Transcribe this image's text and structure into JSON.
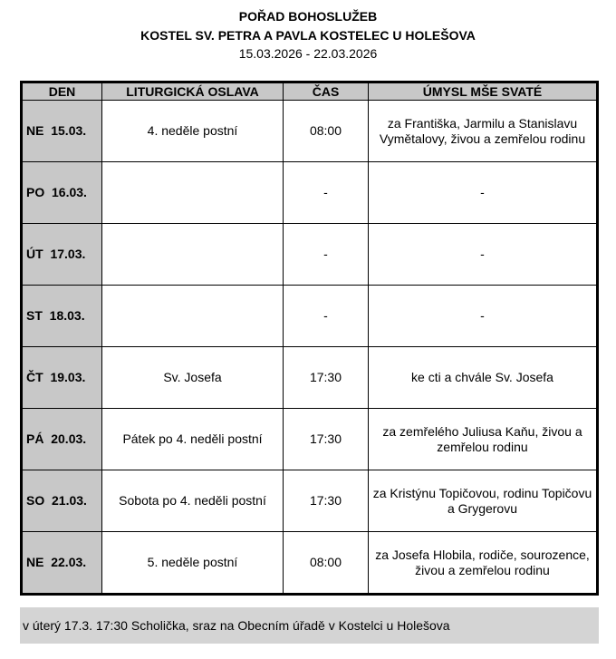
{
  "header": {
    "line1": "POŘAD BOHOSLUŽEB",
    "line2": "KOSTEL SV. PETRA A PAVLA KOSTELEC U HOLEŠOVA",
    "dates": "15.03.2026 - 22.03.2026"
  },
  "columns": [
    "DEN",
    "LITURGICKÁ OSLAVA",
    "ČAS",
    "ÚMYSL MŠE SVATÉ"
  ],
  "rows": [
    {
      "day": "NE  15.03.",
      "oslava": "4. neděle postní",
      "cas": "08:00",
      "umysl": "za Františka, Jarmilu a Stanislavu Vymětalovy, živou a zemřelou rodinu"
    },
    {
      "day": "PO  16.03.",
      "oslava": "",
      "cas": "-",
      "umysl": "-"
    },
    {
      "day": "ÚT  17.03.",
      "oslava": "",
      "cas": "-",
      "umysl": "-"
    },
    {
      "day": "ST  18.03.",
      "oslava": "",
      "cas": "-",
      "umysl": "-"
    },
    {
      "day": "ČT  19.03.",
      "oslava": "Sv. Josefa",
      "cas": "17:30",
      "umysl": "ke cti a chvále Sv. Josefa"
    },
    {
      "day": "PÁ  20.03.",
      "oslava": "Pátek po 4. neděli postní",
      "cas": "17:30",
      "umysl": "za zemřelého Juliusa Kaňu, živou a zemřelou rodinu"
    },
    {
      "day": "SO  21.03.",
      "oslava": "Sobota po 4. neděli postní",
      "cas": "17:30",
      "umysl": "za Kristýnu Topičovou, rodinu Topičovu a Grygerovu"
    },
    {
      "day": "NE  22.03.",
      "oslava": "5. neděle postní",
      "cas": "08:00",
      "umysl": "za Josefa Hlobila, rodiče, sourozence, živou a zemřelou rodinu"
    }
  ],
  "footer": "v úterý 17.3. 17:30 Scholička, sraz na Obecním úřadě v Kostelci u Holešova"
}
